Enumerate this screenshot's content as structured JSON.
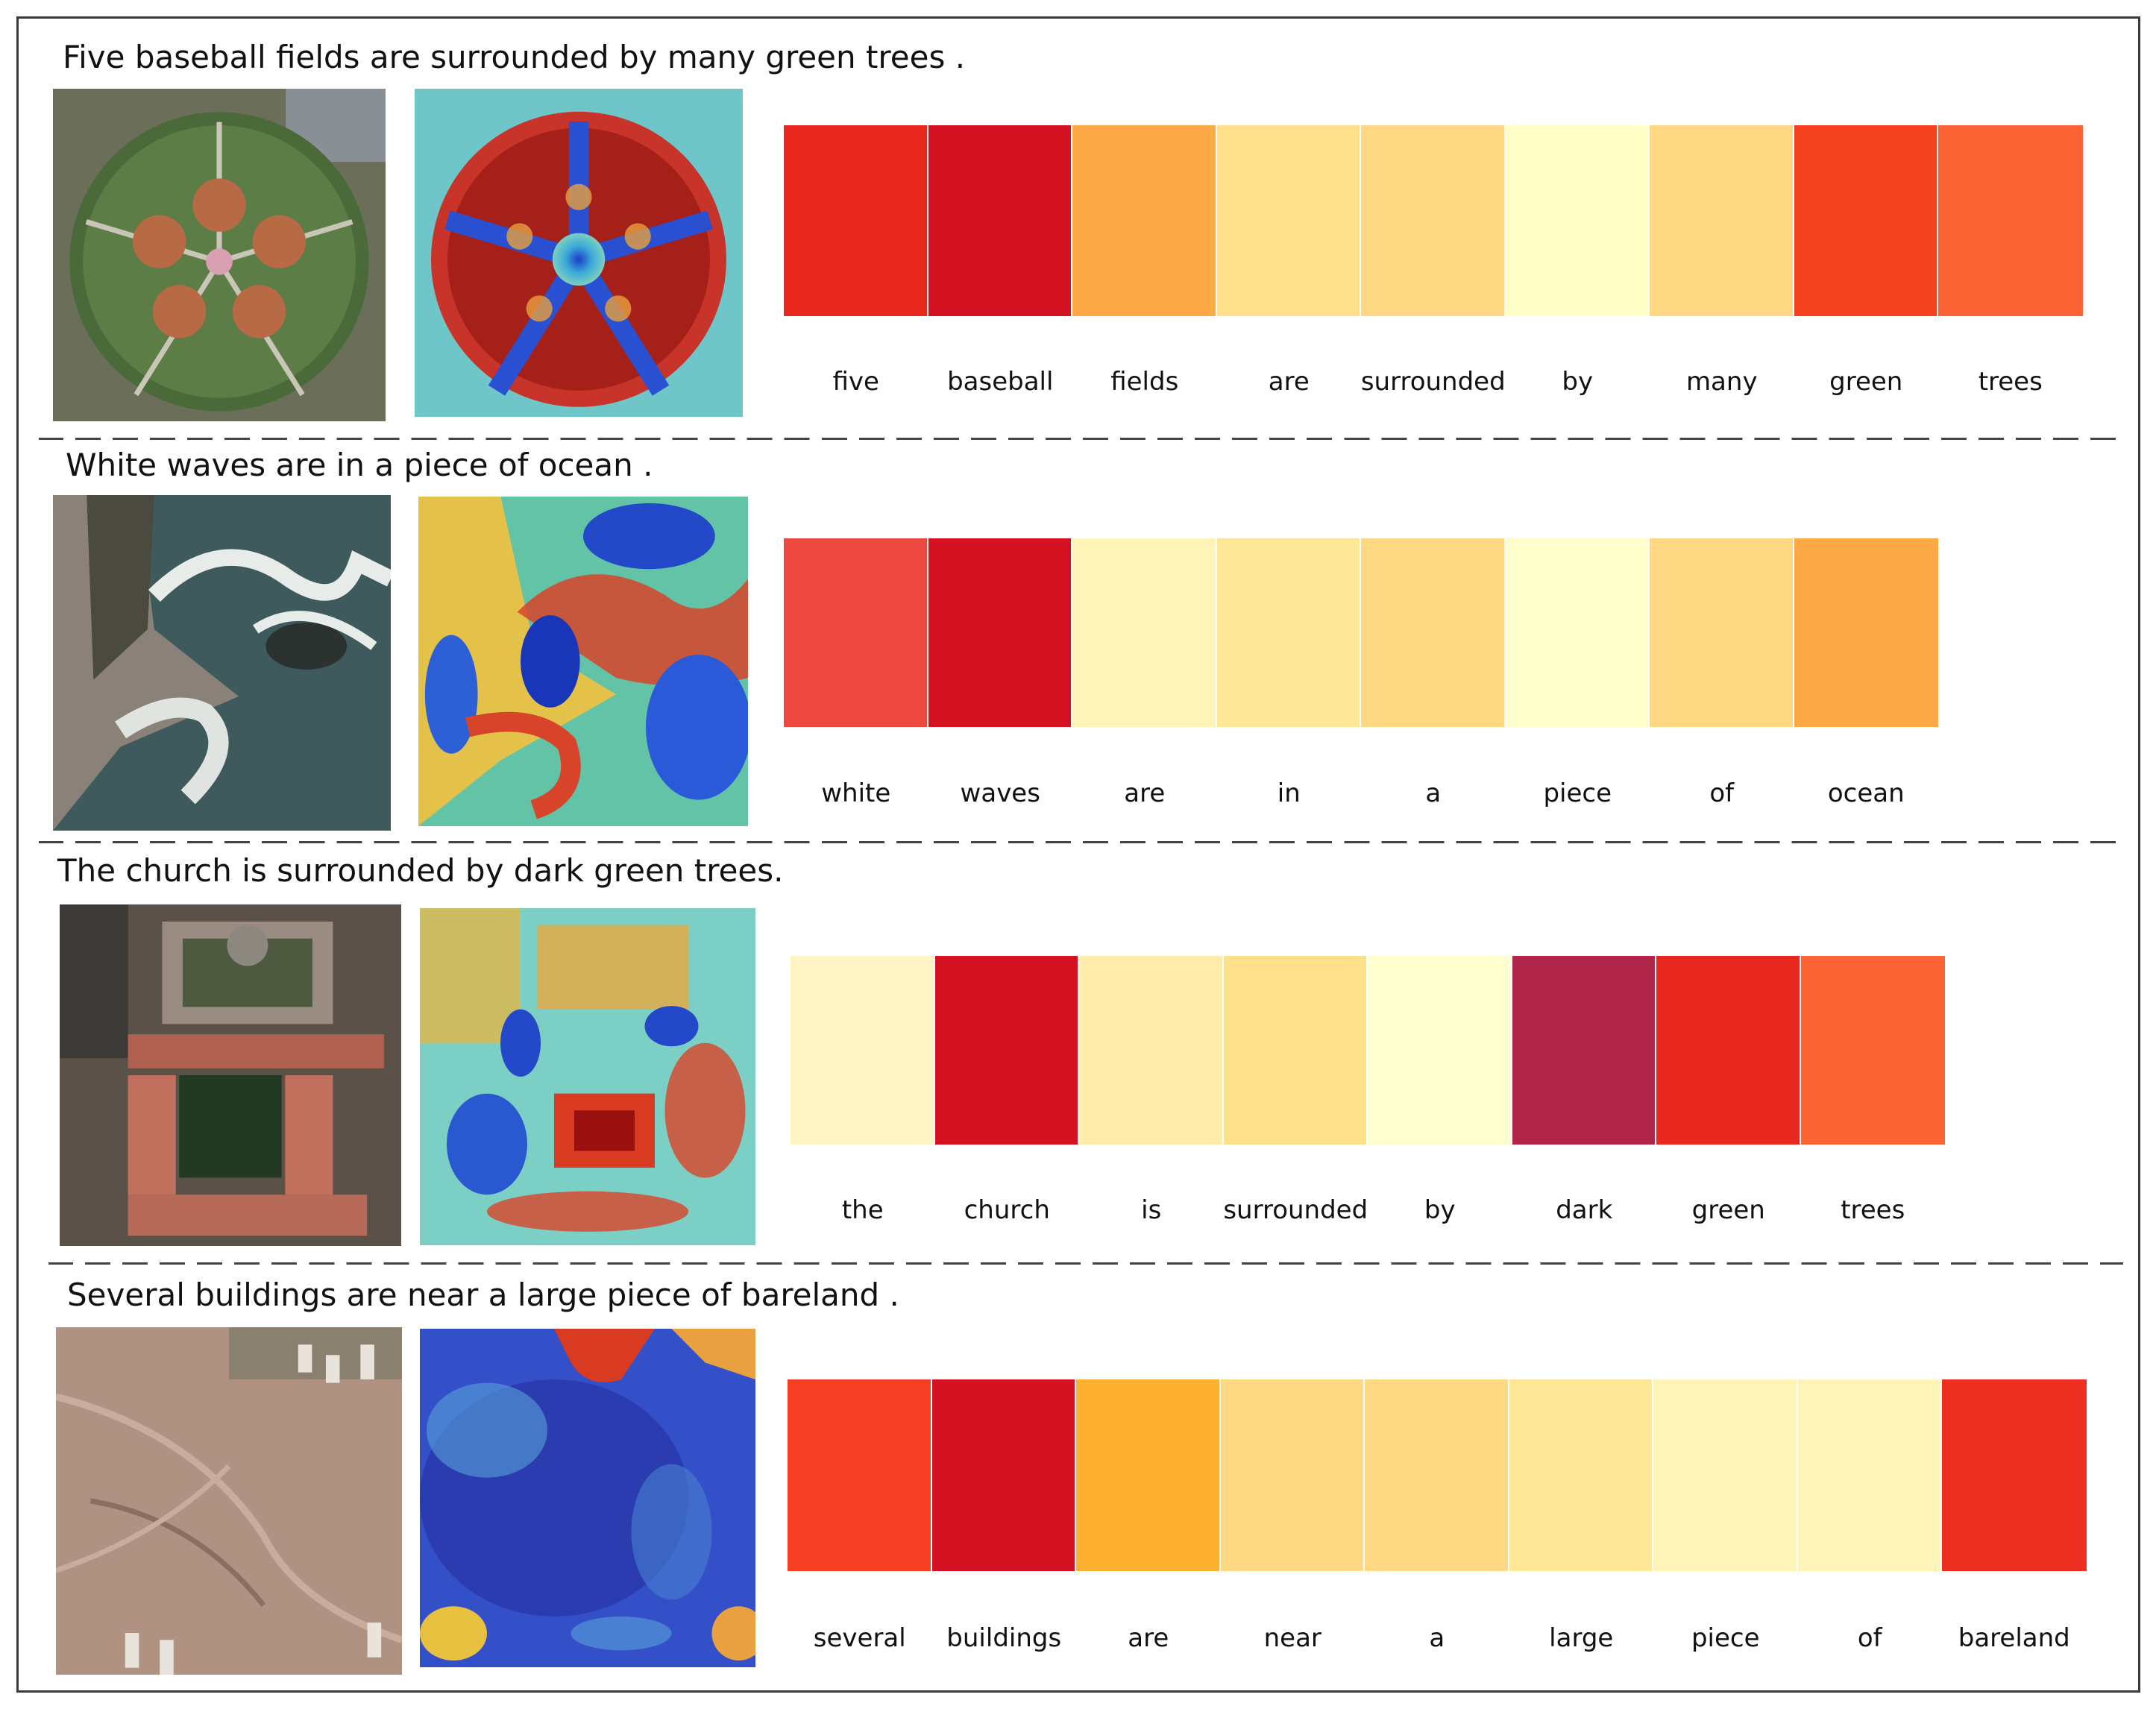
{
  "rows": [
    {
      "caption": "Five baseball fields are surrounded by many green trees .",
      "words": [
        "five",
        "baseball",
        "fields",
        "are",
        "surrounded",
        "by",
        "many",
        "green",
        "trees"
      ],
      "colors": [
        "#e8281f",
        "#d31120",
        "#fda948",
        "#fee08b",
        "#fed882",
        "#ffffc6",
        "#fed882",
        "#f3401f",
        "#fd6435"
      ],
      "image_icon": "aerial-baseball-fields-icon",
      "heatmap_icon": "attention-heatmap-icon"
    },
    {
      "caption": "White waves are in a piece of ocean .",
      "words": [
        "white",
        "waves",
        "are",
        "in",
        "a",
        "piece",
        "of",
        "ocean"
      ],
      "colors": [
        "#ec4840",
        "#d31120",
        "#fff4b8",
        "#fee898",
        "#fed882",
        "#ffffcd",
        "#fed882",
        "#fda948"
      ],
      "image_icon": "aerial-ocean-waves-icon",
      "heatmap_icon": "attention-heatmap-icon"
    },
    {
      "caption": "The church is surrounded by dark green trees.",
      "words": [
        "the",
        "church",
        "is",
        "surrounded",
        "by",
        "dark",
        "green",
        "trees"
      ],
      "colors": [
        "#fff4c4",
        "#d31120",
        "#ffebaa",
        "#fee08b",
        "#ffffd0",
        "#b02549",
        "#e8281f",
        "#fd6435"
      ],
      "image_icon": "aerial-church-icon",
      "heatmap_icon": "attention-heatmap-icon"
    },
    {
      "caption": "Several buildings are near a large piece of bareland .",
      "words": [
        "several",
        "buildings",
        "are",
        "near",
        "a",
        "large",
        "piece",
        "of",
        "bareland"
      ],
      "colors": [
        "#f53f25",
        "#d31120",
        "#feb031",
        "#fed882",
        "#fed882",
        "#fee898",
        "#fff4b8",
        "#fff4b8",
        "#ed2f22"
      ],
      "image_icon": "aerial-bareland-icon",
      "heatmap_icon": "attention-heatmap-icon"
    }
  ]
}
